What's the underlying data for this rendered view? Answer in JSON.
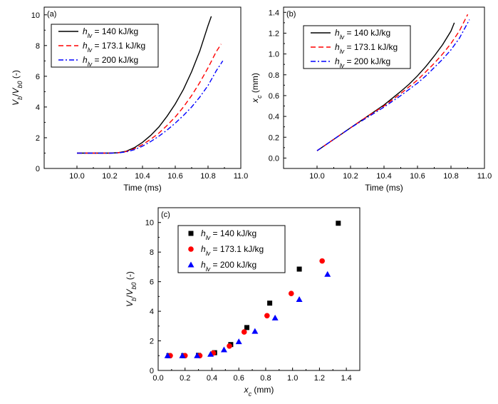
{
  "chart_data": [
    {
      "panel": "(a)",
      "type": "line",
      "xlabel": "Time (ms)",
      "ylabel_main": "V",
      "ylabel_sub1": "b",
      "ylabel_mid": "/V",
      "ylabel_sub2": "b0",
      "ylabel_tail": " (-)",
      "xlim": [
        9.8,
        11.0
      ],
      "ylim": [
        0,
        10.5
      ],
      "xticks": [
        "10.0",
        "10.2",
        "10.4",
        "10.6",
        "10.8",
        "11.0"
      ],
      "yticks": [
        "0",
        "2",
        "4",
        "6",
        "8",
        "10"
      ],
      "legend_position": "top-left",
      "series": [
        {
          "name_sub": "lv",
          "name_text": " = 140 kJ/kg",
          "color": "#000000",
          "dash": "solid",
          "x": [
            10.0,
            10.1,
            10.2,
            10.25,
            10.3,
            10.35,
            10.4,
            10.45,
            10.5,
            10.55,
            10.6,
            10.65,
            10.7,
            10.75,
            10.8,
            10.82
          ],
          "y": [
            1.0,
            1.0,
            1.0,
            1.02,
            1.12,
            1.35,
            1.7,
            2.15,
            2.7,
            3.4,
            4.2,
            5.15,
            6.3,
            7.65,
            9.3,
            9.9
          ]
        },
        {
          "name_sub": "lv",
          "name_text": " = 173.1 kJ/kg",
          "color": "#ff0000",
          "dash": "dash",
          "x": [
            10.0,
            10.1,
            10.2,
            10.25,
            10.3,
            10.35,
            10.4,
            10.45,
            10.5,
            10.55,
            10.6,
            10.65,
            10.7,
            10.75,
            10.8,
            10.85,
            10.88
          ],
          "y": [
            1.0,
            1.0,
            1.0,
            1.02,
            1.1,
            1.28,
            1.55,
            1.9,
            2.3,
            2.8,
            3.35,
            4.0,
            4.75,
            5.6,
            6.55,
            7.6,
            8.1
          ]
        },
        {
          "name_sub": "lv",
          "name_text": " = 200 kJ/kg",
          "color": "#0000ff",
          "dash": "dashdot",
          "x": [
            10.0,
            10.1,
            10.2,
            10.25,
            10.3,
            10.35,
            10.4,
            10.45,
            10.5,
            10.55,
            10.6,
            10.65,
            10.7,
            10.75,
            10.8,
            10.85,
            10.89
          ],
          "y": [
            1.0,
            1.0,
            1.0,
            1.01,
            1.08,
            1.22,
            1.45,
            1.75,
            2.1,
            2.5,
            2.95,
            3.45,
            4.0,
            4.65,
            5.4,
            6.35,
            7.0
          ]
        }
      ]
    },
    {
      "panel": "(b)",
      "type": "line",
      "xlabel": "Time (ms)",
      "ylabel_main": "x",
      "ylabel_sub1": "c",
      "ylabel_tail": " (mm)",
      "xlim": [
        9.8,
        11.0
      ],
      "ylim": [
        -0.1,
        1.45
      ],
      "xticks": [
        "10.0",
        "10.2",
        "10.4",
        "10.6",
        "10.8",
        "11.0"
      ],
      "yticks": [
        "0.0",
        "0.2",
        "0.4",
        "0.6",
        "0.8",
        "1.0",
        "1.2",
        "1.4"
      ],
      "legend_position": "top-left",
      "series": [
        {
          "name_sub": "lv",
          "name_text": " = 140 kJ/kg",
          "color": "#000000",
          "dash": "solid",
          "x": [
            10.0,
            10.1,
            10.2,
            10.3,
            10.4,
            10.5,
            10.55,
            10.6,
            10.65,
            10.7,
            10.75,
            10.8,
            10.82
          ],
          "y": [
            0.07,
            0.18,
            0.29,
            0.4,
            0.51,
            0.64,
            0.71,
            0.79,
            0.88,
            0.98,
            1.09,
            1.22,
            1.3
          ]
        },
        {
          "name_sub": "lv",
          "name_text": " = 173.1 kJ/kg",
          "color": "#ff0000",
          "dash": "dash",
          "x": [
            10.0,
            10.1,
            10.2,
            10.3,
            10.4,
            10.5,
            10.6,
            10.65,
            10.7,
            10.75,
            10.8,
            10.85,
            10.9
          ],
          "y": [
            0.07,
            0.18,
            0.29,
            0.4,
            0.5,
            0.62,
            0.75,
            0.83,
            0.91,
            1.0,
            1.1,
            1.22,
            1.38
          ]
        },
        {
          "name_sub": "lv",
          "name_text": " = 200 kJ/kg",
          "color": "#0000ff",
          "dash": "dashdot",
          "x": [
            10.0,
            10.1,
            10.2,
            10.3,
            10.4,
            10.5,
            10.6,
            10.65,
            10.7,
            10.75,
            10.8,
            10.85,
            10.91
          ],
          "y": [
            0.07,
            0.18,
            0.29,
            0.39,
            0.49,
            0.6,
            0.72,
            0.79,
            0.87,
            0.95,
            1.04,
            1.15,
            1.33
          ]
        }
      ]
    },
    {
      "panel": "(c)",
      "type": "scatter",
      "xlabel_main": "x",
      "xlabel_sub": "c",
      "xlabel_tail": " (mm)",
      "ylabel_main": "V",
      "ylabel_sub1": "b",
      "ylabel_mid": "/V",
      "ylabel_sub2": "b0",
      "ylabel_tail": " (-)",
      "xlim": [
        0.0,
        1.5
      ],
      "ylim": [
        0,
        11
      ],
      "xticks": [
        "0.0",
        "0.2",
        "0.4",
        "0.6",
        "0.8",
        "1.0",
        "1.2",
        "1.4"
      ],
      "yticks": [
        "0",
        "2",
        "4",
        "6",
        "8",
        "10"
      ],
      "legend_position": "top-left",
      "series": [
        {
          "name_sub": "lv",
          "name_text": " = 140 kJ/kg",
          "color": "#000000",
          "marker": "square",
          "x": [
            0.08,
            0.19,
            0.3,
            0.42,
            0.54,
            0.66,
            0.83,
            1.05,
            1.34
          ],
          "y": [
            1.0,
            1.0,
            1.02,
            1.2,
            1.75,
            2.9,
            4.55,
            6.85,
            9.95
          ]
        },
        {
          "name_sub": "lv",
          "name_text": " = 173.1 kJ/kg",
          "color": "#ff0000",
          "marker": "circle",
          "x": [
            0.09,
            0.2,
            0.31,
            0.41,
            0.53,
            0.64,
            0.81,
            0.99,
            1.22
          ],
          "y": [
            1.0,
            1.0,
            1.0,
            1.18,
            1.65,
            2.6,
            3.7,
            5.2,
            7.4
          ]
        },
        {
          "name_sub": "lv",
          "name_text": " = 200 kJ/kg",
          "color": "#0000ff",
          "marker": "triangle",
          "x": [
            0.07,
            0.18,
            0.29,
            0.39,
            0.49,
            0.6,
            0.72,
            0.87,
            1.05,
            1.26
          ],
          "y": [
            1.0,
            1.0,
            1.0,
            1.1,
            1.4,
            1.95,
            2.65,
            3.55,
            4.8,
            6.5
          ]
        }
      ]
    }
  ]
}
